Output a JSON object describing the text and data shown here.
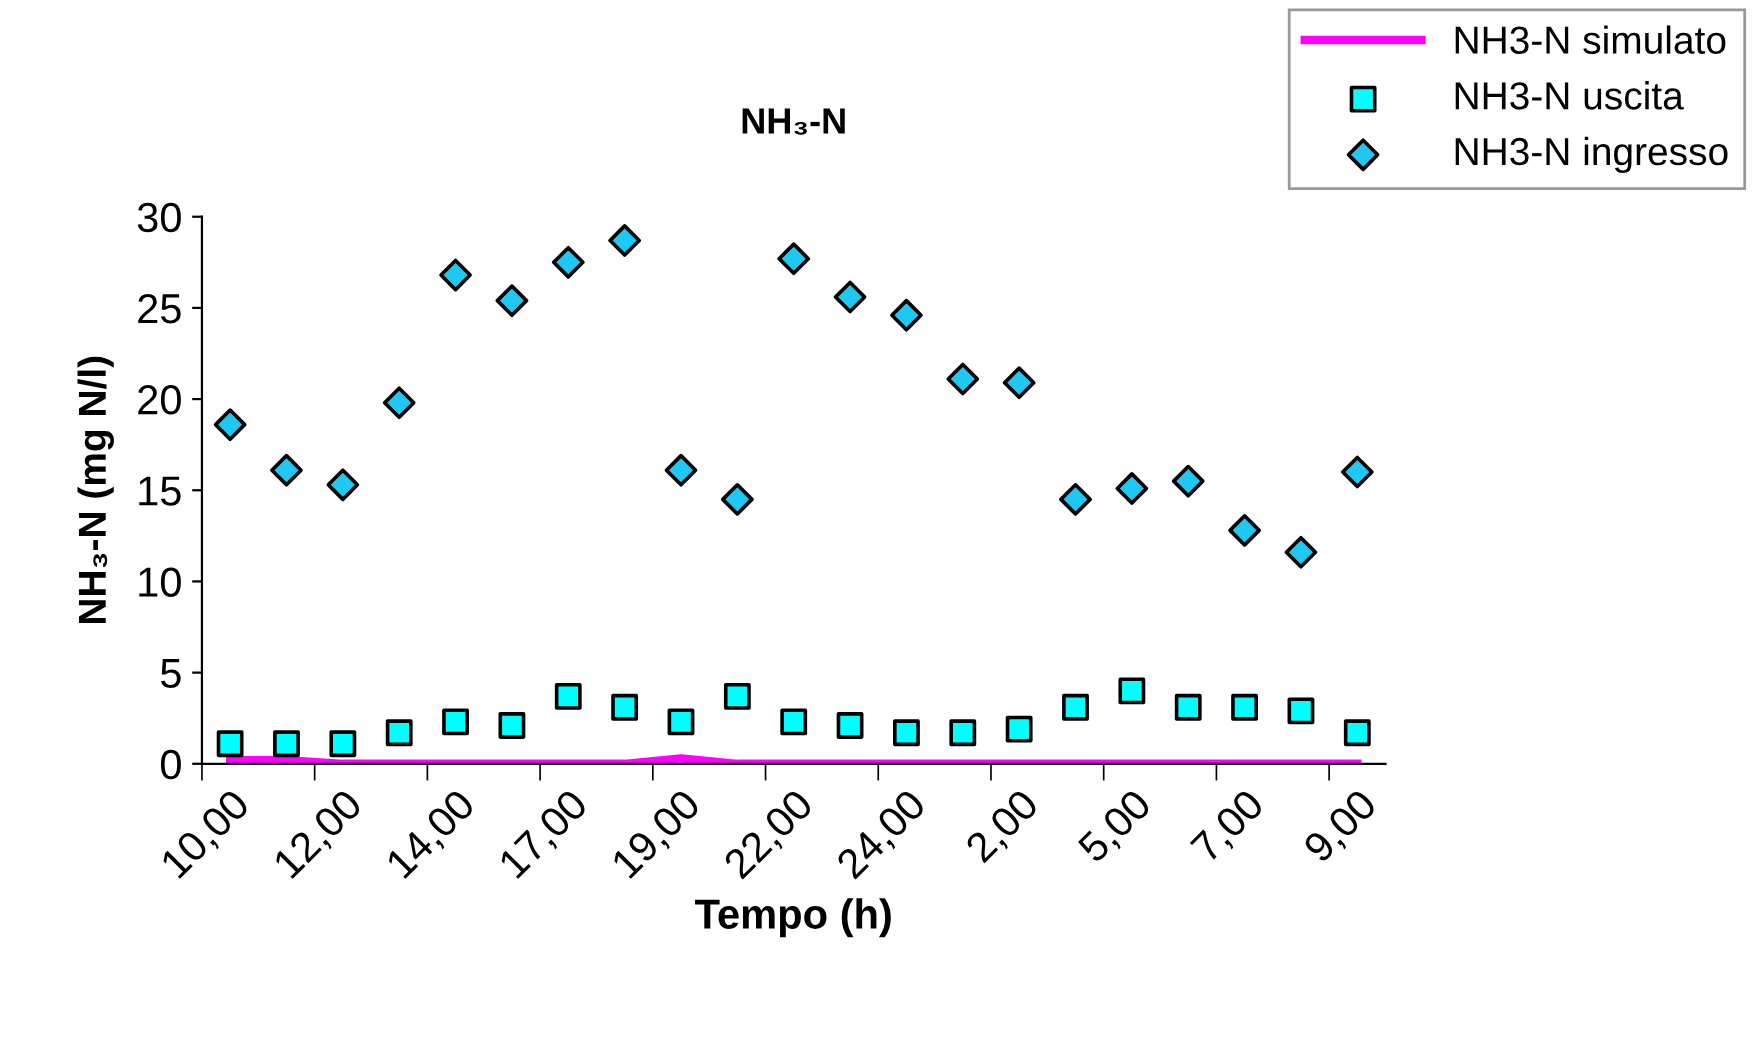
{
  "chart_data": {
    "type": "scatter",
    "title": "NH₃-N",
    "xlabel": "Tempo (h)",
    "ylabel": "NH₃-N (mg N/l)",
    "categories": [
      "10,00",
      null,
      "12,00",
      null,
      "14,00",
      null,
      "17,00",
      null,
      "19,00",
      null,
      "22,00",
      null,
      "24,00",
      null,
      "2,00",
      null,
      "5,00",
      null,
      "7,00",
      null,
      "9,00"
    ],
    "series": [
      {
        "name": "NH3-N simulato",
        "type": "line",
        "color": "#ff00ff",
        "marker": "none",
        "line_style": "solid",
        "values": [
          0.2,
          0.2,
          0,
          0,
          0,
          0,
          0,
          0,
          0.3,
          0,
          0,
          0,
          0,
          0,
          0,
          0,
          0,
          0,
          0,
          0,
          0
        ]
      },
      {
        "name": "NH3-N uscita",
        "color": "#00ffff",
        "marker": "square",
        "values": [
          1.1,
          1.1,
          1.1,
          1.7,
          2.3,
          2.1,
          3.7,
          3.1,
          2.3,
          3.7,
          2.3,
          2.1,
          1.7,
          1.7,
          1.9,
          3.1,
          4.0,
          3.1,
          3.1,
          2.9,
          1.7
        ]
      },
      {
        "name": "NH3-N ingresso",
        "color": "#1ec8f0",
        "marker": "diamond",
        "values": [
          18.6,
          16.1,
          15.3,
          19.8,
          26.8,
          25.4,
          27.5,
          28.7,
          16.1,
          14.5,
          27.7,
          25.6,
          24.6,
          21.1,
          20.9,
          14.5,
          15.1,
          15.5,
          12.8,
          11.6,
          16.0
        ]
      }
    ],
    "ylim": [
      0,
      30
    ],
    "yticks": [
      0,
      5,
      10,
      15,
      20,
      25,
      30
    ],
    "grid": false,
    "legend": "top right"
  }
}
